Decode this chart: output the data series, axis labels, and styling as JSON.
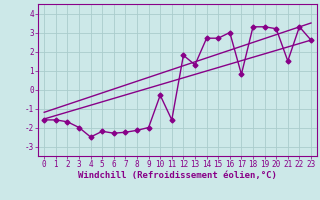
{
  "xlabel": "Windchill (Refroidissement éolien,°C)",
  "bg_color": "#cce8e8",
  "grid_color": "#aacccc",
  "line_color": "#880088",
  "spine_color": "#880088",
  "xlim": [
    -0.5,
    23.5
  ],
  "ylim": [
    -3.5,
    4.5
  ],
  "xticks": [
    0,
    1,
    2,
    3,
    4,
    5,
    6,
    7,
    8,
    9,
    10,
    11,
    12,
    13,
    14,
    15,
    16,
    17,
    18,
    19,
    20,
    21,
    22,
    23
  ],
  "yticks": [
    -3,
    -2,
    -1,
    0,
    1,
    2,
    3,
    4
  ],
  "zigzag_x": [
    0,
    1,
    2,
    3,
    4,
    5,
    6,
    7,
    8,
    9,
    10,
    11,
    12,
    13,
    14,
    15,
    16,
    17,
    18,
    19,
    20,
    21,
    22,
    23
  ],
  "zigzag_y": [
    -1.6,
    -1.6,
    -1.7,
    -2.0,
    -2.5,
    -2.2,
    -2.3,
    -2.25,
    -2.15,
    -2.0,
    -0.3,
    -1.6,
    1.8,
    1.3,
    2.7,
    2.7,
    3.0,
    0.8,
    3.3,
    3.3,
    3.2,
    1.5,
    3.3,
    2.6
  ],
  "line1_x": [
    0,
    23
  ],
  "line1_y": [
    -1.55,
    2.6
  ],
  "line2_x": [
    0,
    23
  ],
  "line2_y": [
    -1.2,
    3.5
  ],
  "marker": "D",
  "markersize": 2.5,
  "linewidth": 1.0,
  "xlabel_fontsize": 6.5,
  "tick_fontsize": 5.5
}
